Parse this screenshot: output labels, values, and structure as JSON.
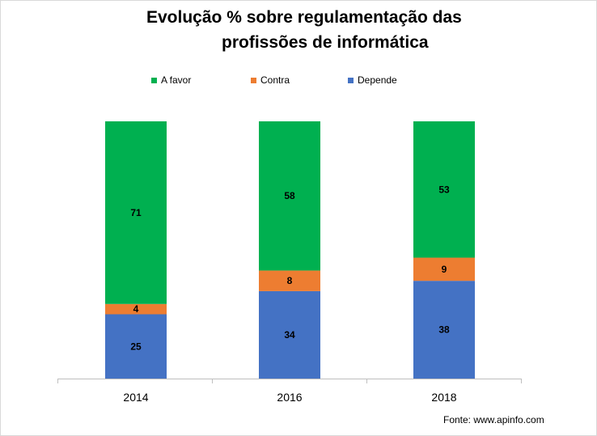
{
  "chart_data": {
    "type": "bar",
    "stacked": true,
    "title": [
      "Evolução % sobre regulamentação das",
      "profissões de informática"
    ],
    "categories": [
      "2014",
      "2016",
      "2018"
    ],
    "series": [
      {
        "name": "Depende",
        "color": "#4472c4",
        "values": [
          25,
          34,
          38
        ]
      },
      {
        "name": "Contra",
        "color": "#ed7d31",
        "values": [
          4,
          8,
          9
        ]
      },
      {
        "name": "A favor",
        "color": "#00b050",
        "values": [
          71,
          58,
          53
        ]
      }
    ],
    "ylim": [
      0,
      100
    ],
    "grid": false,
    "legend": "top",
    "legend_order": [
      "A favor",
      "Contra",
      "Depende"
    ],
    "source": "Fonte:  www.apinfo.com"
  }
}
